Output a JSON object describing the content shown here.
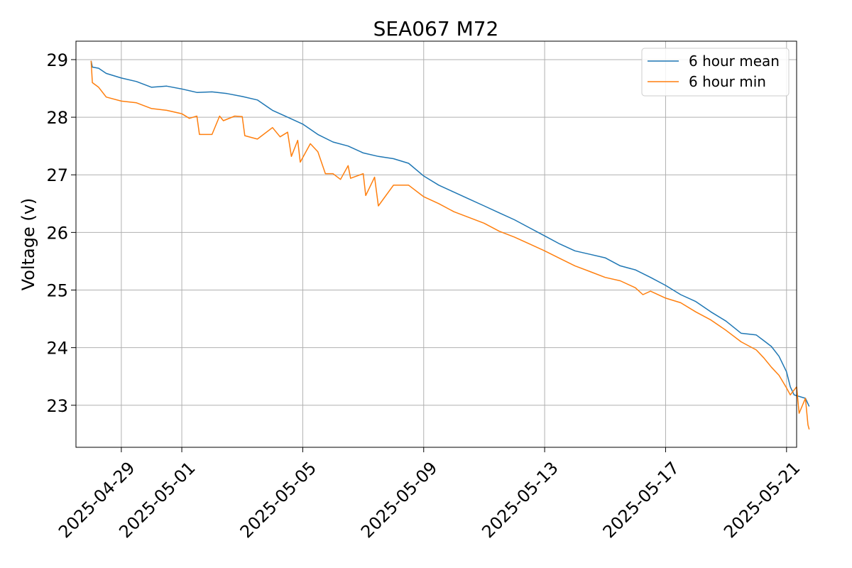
{
  "chart_data": {
    "type": "line",
    "title": "SEA067 M72",
    "xlabel": "",
    "ylabel": "Voltage (v)",
    "x_axis_type": "date",
    "xlim": [
      "2025-04-27T12:00",
      "2025-05-21T08:00"
    ],
    "ylim": [
      22.27,
      29.32
    ],
    "x_ticks": [
      "2025-04-29",
      "2025-05-01",
      "2025-05-05",
      "2025-05-09",
      "2025-05-13",
      "2025-05-17",
      "2025-05-21"
    ],
    "y_ticks": [
      23,
      24,
      25,
      26,
      27,
      28,
      29
    ],
    "grid": true,
    "legend_position": "upper-right",
    "series": [
      {
        "name": "6 hour mean",
        "color": "#1f77b4",
        "points": [
          [
            "2025-04-28T00:00",
            28.98
          ],
          [
            "2025-04-28T01:00",
            28.87
          ],
          [
            "2025-04-28T06:00",
            28.85
          ],
          [
            "2025-04-28T12:00",
            28.76
          ],
          [
            "2025-04-29T00:00",
            28.68
          ],
          [
            "2025-04-29T12:00",
            28.62
          ],
          [
            "2025-04-30T00:00",
            28.52
          ],
          [
            "2025-04-30T12:00",
            28.54
          ],
          [
            "2025-05-01T00:00",
            28.49
          ],
          [
            "2025-05-01T12:00",
            28.43
          ],
          [
            "2025-05-02T00:00",
            28.44
          ],
          [
            "2025-05-02T12:00",
            28.41
          ],
          [
            "2025-05-03T00:00",
            28.36
          ],
          [
            "2025-05-03T12:00",
            28.3
          ],
          [
            "2025-05-04T00:00",
            28.12
          ],
          [
            "2025-05-04T12:00",
            28.0
          ],
          [
            "2025-05-05T00:00",
            27.88
          ],
          [
            "2025-05-05T12:00",
            27.7
          ],
          [
            "2025-05-06T00:00",
            27.57
          ],
          [
            "2025-05-06T12:00",
            27.5
          ],
          [
            "2025-05-07T00:00",
            27.38
          ],
          [
            "2025-05-07T12:00",
            27.32
          ],
          [
            "2025-05-08T00:00",
            27.28
          ],
          [
            "2025-05-08T12:00",
            27.2
          ],
          [
            "2025-05-09T00:00",
            26.98
          ],
          [
            "2025-05-09T12:00",
            26.82
          ],
          [
            "2025-05-10T00:00",
            26.7
          ],
          [
            "2025-05-10T12:00",
            26.58
          ],
          [
            "2025-05-11T00:00",
            26.46
          ],
          [
            "2025-05-11T12:00",
            26.34
          ],
          [
            "2025-05-12T00:00",
            26.22
          ],
          [
            "2025-05-12T12:00",
            26.08
          ],
          [
            "2025-05-13T00:00",
            25.94
          ],
          [
            "2025-05-13T12:00",
            25.8
          ],
          [
            "2025-05-14T00:00",
            25.68
          ],
          [
            "2025-05-14T12:00",
            25.62
          ],
          [
            "2025-05-15T00:00",
            25.56
          ],
          [
            "2025-05-15T12:00",
            25.42
          ],
          [
            "2025-05-16T00:00",
            25.35
          ],
          [
            "2025-05-16T12:00",
            25.22
          ],
          [
            "2025-05-17T00:00",
            25.08
          ],
          [
            "2025-05-17T12:00",
            24.92
          ],
          [
            "2025-05-18T00:00",
            24.8
          ],
          [
            "2025-05-18T12:00",
            24.62
          ],
          [
            "2025-05-19T00:00",
            24.46
          ],
          [
            "2025-05-19T12:00",
            24.25
          ],
          [
            "2025-05-20T00:00",
            24.22
          ],
          [
            "2025-05-20T06:00",
            24.12
          ],
          [
            "2025-05-20T12:00",
            24.02
          ],
          [
            "2025-05-20T18:00",
            23.85
          ],
          [
            "2025-05-21T00:00",
            23.58
          ],
          [
            "2025-05-21T03:00",
            23.32
          ],
          [
            "2025-05-21T06:00",
            23.18
          ],
          [
            "2025-05-21T15:00",
            23.12
          ],
          [
            "2025-05-21T18:00",
            22.98
          ]
        ]
      },
      {
        "name": "6 hour min",
        "color": "#ff7f0e",
        "points": [
          [
            "2025-04-28T00:00",
            28.98
          ],
          [
            "2025-04-28T01:00",
            28.6
          ],
          [
            "2025-04-28T06:00",
            28.52
          ],
          [
            "2025-04-28T12:00",
            28.35
          ],
          [
            "2025-04-29T00:00",
            28.28
          ],
          [
            "2025-04-29T12:00",
            28.25
          ],
          [
            "2025-04-30T00:00",
            28.15
          ],
          [
            "2025-04-30T12:00",
            28.12
          ],
          [
            "2025-05-01T00:00",
            28.06
          ],
          [
            "2025-05-01T06:00",
            27.98
          ],
          [
            "2025-05-01T12:00",
            28.02
          ],
          [
            "2025-05-01T14:00",
            27.7
          ],
          [
            "2025-05-02T00:00",
            27.7
          ],
          [
            "2025-05-02T06:00",
            28.02
          ],
          [
            "2025-05-02T09:00",
            27.94
          ],
          [
            "2025-05-02T18:00",
            28.02
          ],
          [
            "2025-05-03T00:00",
            28.01
          ],
          [
            "2025-05-03T02:00",
            27.68
          ],
          [
            "2025-05-03T12:00",
            27.62
          ],
          [
            "2025-05-04T00:00",
            27.82
          ],
          [
            "2025-05-04T06:00",
            27.66
          ],
          [
            "2025-05-04T12:00",
            27.74
          ],
          [
            "2025-05-04T15:00",
            27.32
          ],
          [
            "2025-05-04T20:00",
            27.6
          ],
          [
            "2025-05-04T22:00",
            27.22
          ],
          [
            "2025-05-05T06:00",
            27.54
          ],
          [
            "2025-05-05T12:00",
            27.4
          ],
          [
            "2025-05-05T18:00",
            27.02
          ],
          [
            "2025-05-06T00:00",
            27.02
          ],
          [
            "2025-05-06T06:00",
            26.92
          ],
          [
            "2025-05-06T12:00",
            27.16
          ],
          [
            "2025-05-06T14:00",
            26.94
          ],
          [
            "2025-05-07T00:00",
            27.02
          ],
          [
            "2025-05-07T02:00",
            26.64
          ],
          [
            "2025-05-07T09:00",
            26.96
          ],
          [
            "2025-05-07T12:00",
            26.46
          ],
          [
            "2025-05-08T00:00",
            26.82
          ],
          [
            "2025-05-08T12:00",
            26.82
          ],
          [
            "2025-05-09T00:00",
            26.62
          ],
          [
            "2025-05-09T12:00",
            26.5
          ],
          [
            "2025-05-10T00:00",
            26.36
          ],
          [
            "2025-05-10T12:00",
            26.26
          ],
          [
            "2025-05-11T00:00",
            26.16
          ],
          [
            "2025-05-11T12:00",
            26.02
          ],
          [
            "2025-05-12T00:00",
            25.92
          ],
          [
            "2025-05-12T12:00",
            25.8
          ],
          [
            "2025-05-13T00:00",
            25.68
          ],
          [
            "2025-05-13T12:00",
            25.55
          ],
          [
            "2025-05-14T00:00",
            25.42
          ],
          [
            "2025-05-14T12:00",
            25.32
          ],
          [
            "2025-05-15T00:00",
            25.22
          ],
          [
            "2025-05-15T12:00",
            25.16
          ],
          [
            "2025-05-16T00:00",
            25.04
          ],
          [
            "2025-05-16T06:00",
            24.92
          ],
          [
            "2025-05-16T12:00",
            24.98
          ],
          [
            "2025-05-17T00:00",
            24.86
          ],
          [
            "2025-05-17T12:00",
            24.78
          ],
          [
            "2025-05-18T00:00",
            24.62
          ],
          [
            "2025-05-18T12:00",
            24.48
          ],
          [
            "2025-05-19T00:00",
            24.3
          ],
          [
            "2025-05-19T12:00",
            24.1
          ],
          [
            "2025-05-20T00:00",
            23.96
          ],
          [
            "2025-05-20T06:00",
            23.82
          ],
          [
            "2025-05-20T12:00",
            23.66
          ],
          [
            "2025-05-20T18:00",
            23.52
          ],
          [
            "2025-05-21T00:00",
            23.3
          ],
          [
            "2025-05-21T03:00",
            23.18
          ],
          [
            "2025-05-21T08:00",
            23.32
          ],
          [
            "2025-05-21T10:00",
            22.86
          ],
          [
            "2025-05-21T15:00",
            23.12
          ],
          [
            "2025-05-21T17:00",
            22.66
          ],
          [
            "2025-05-21T18:00",
            22.58
          ]
        ]
      }
    ]
  }
}
